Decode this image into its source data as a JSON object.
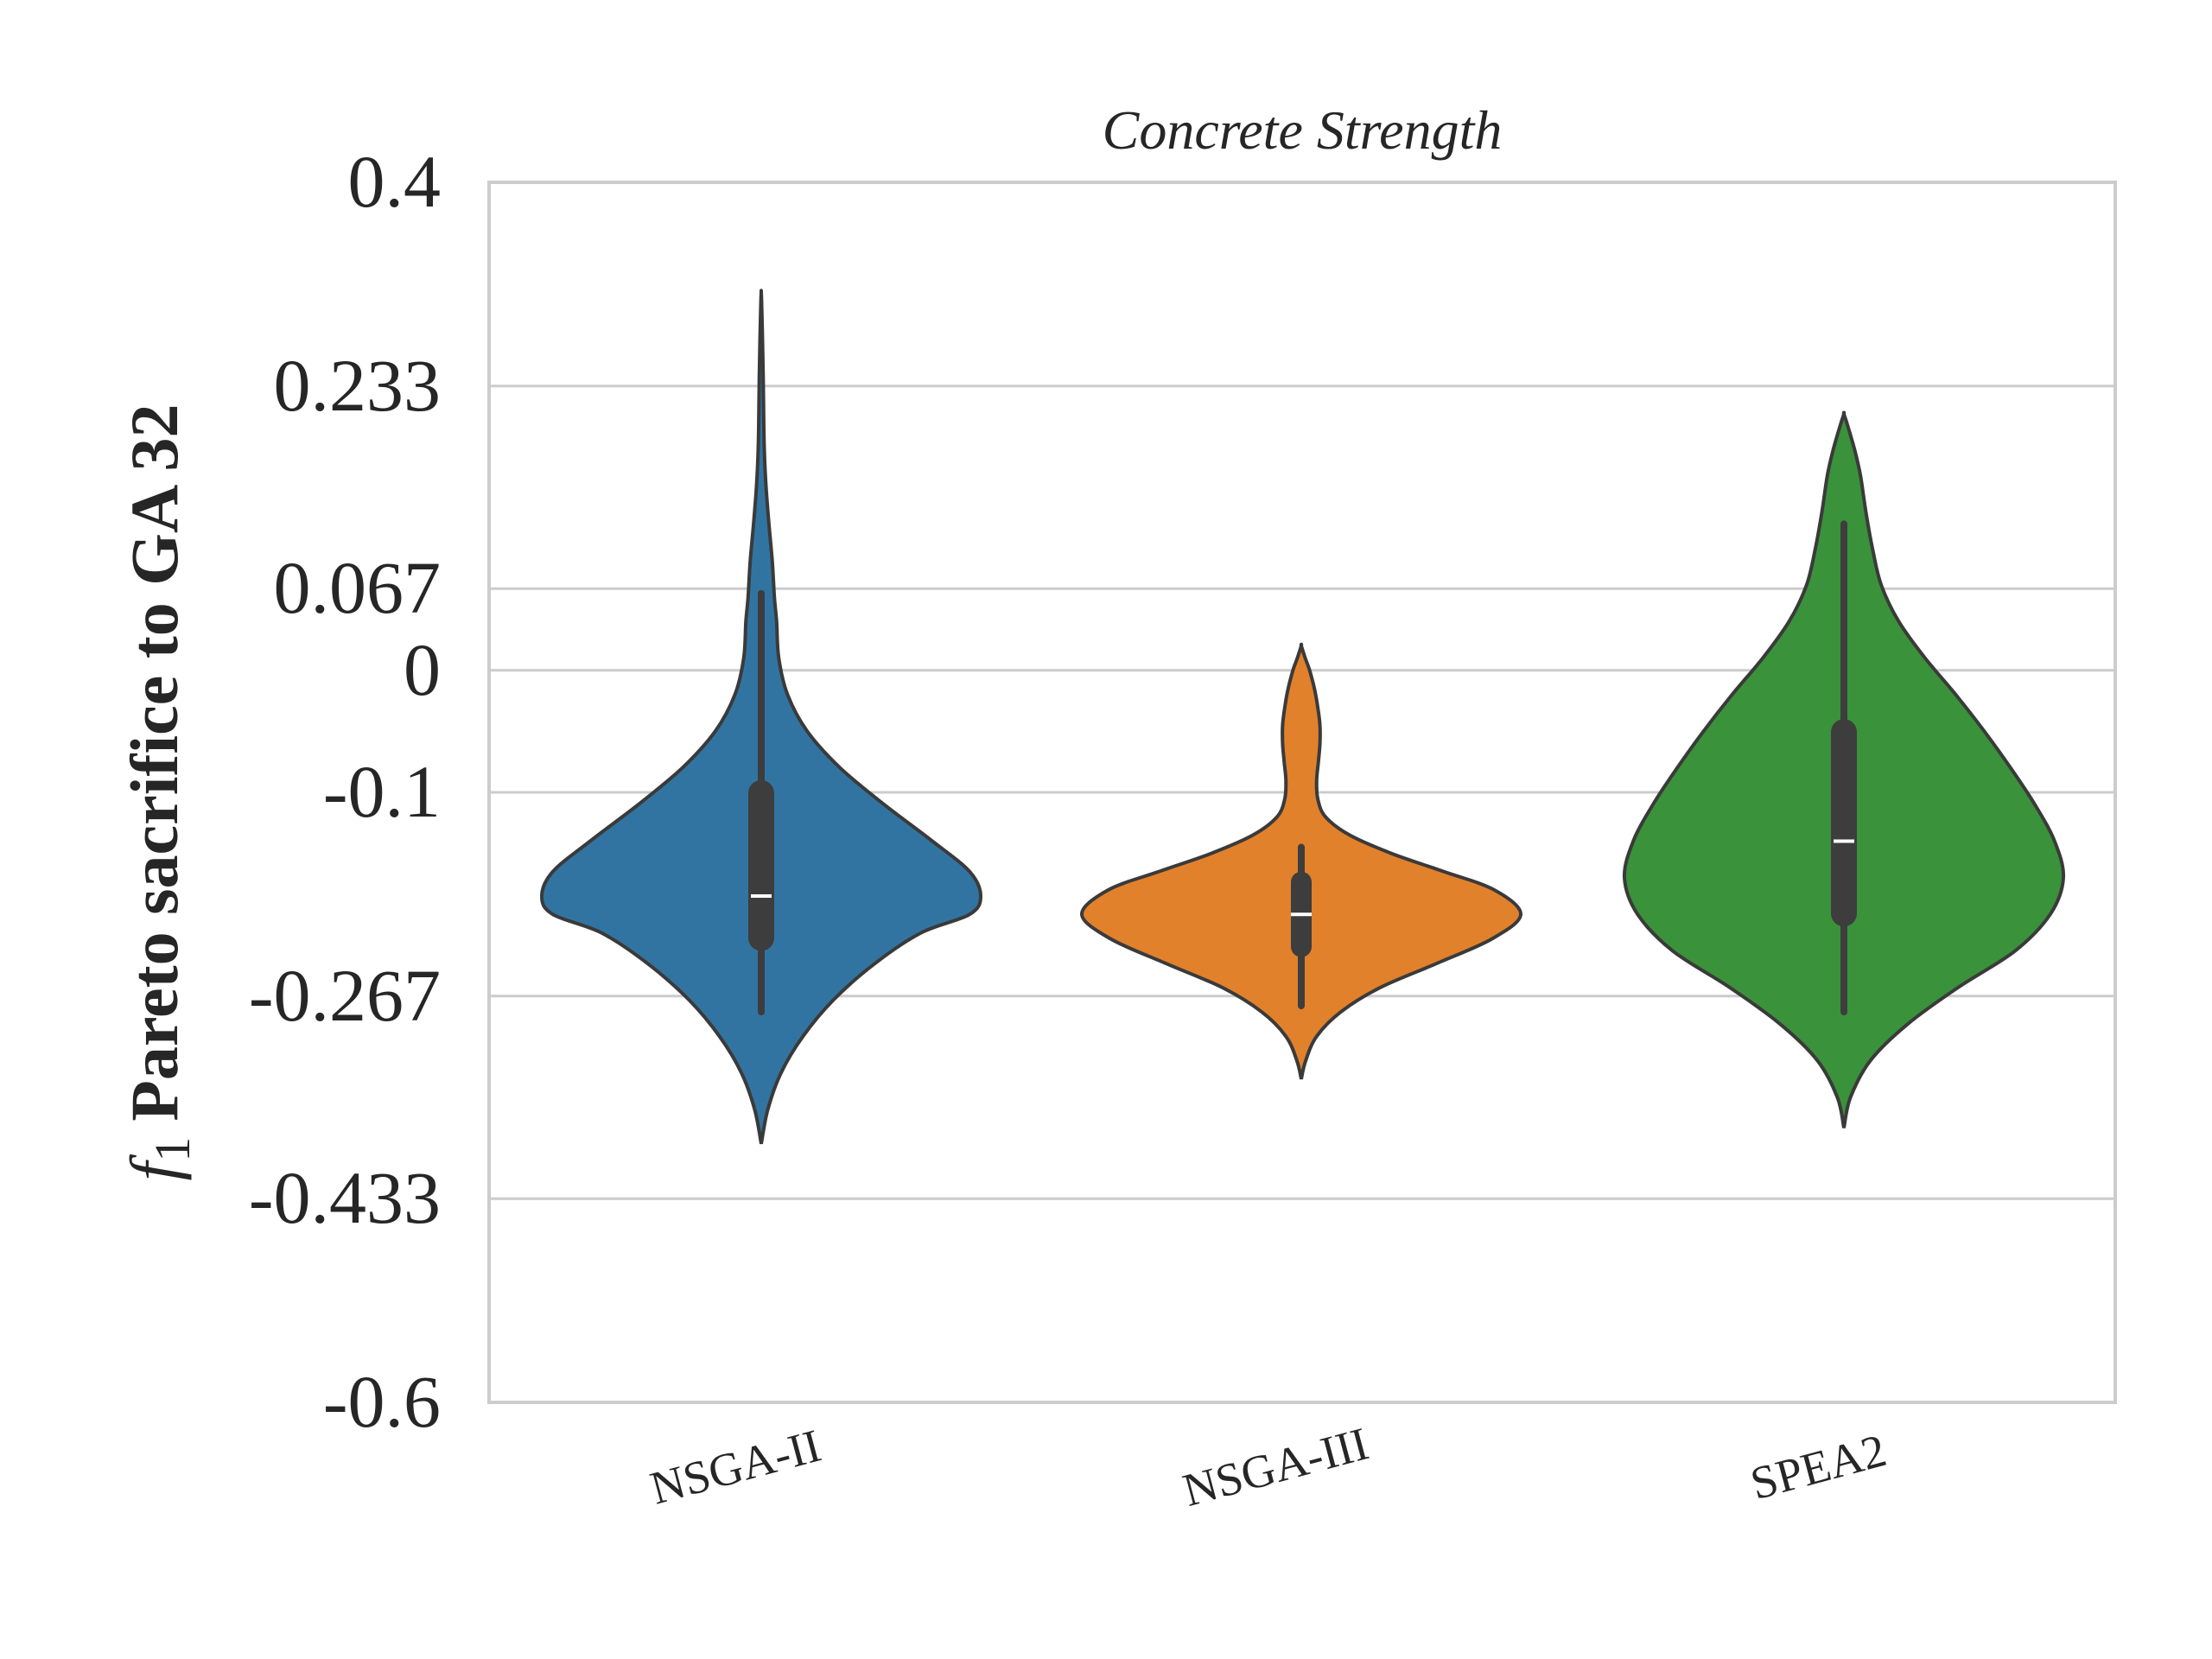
{
  "chart_data": {
    "type": "violin",
    "title": "Concrete Strength",
    "ylabel_symbol": "f",
    "ylabel_subscript": "1",
    "ylabel": "Pareto sacrifice to GA 32",
    "ylim": [
      -0.6,
      0.4
    ],
    "yticks": [
      0.4,
      0.233,
      0.067,
      0,
      -0.1,
      -0.267,
      -0.433,
      -0.6
    ],
    "ytick_labels": [
      "0.4",
      "0.233",
      "0.067",
      "0",
      "-0.1",
      "-0.267",
      "-0.433",
      "-0.6"
    ],
    "grid": "horizontal",
    "categories": [
      "NSGA-II",
      "NSGA-III",
      "SPEA2"
    ],
    "series": [
      {
        "category": "NSGA-II",
        "color": "#3274a1",
        "min": -0.28,
        "q1": -0.23,
        "median": -0.185,
        "q3": -0.09,
        "max": 0.063,
        "whisker_low": -0.28,
        "whisker_high": 0.063,
        "kde_extent": [
          -0.388,
          0.31
        ],
        "density": [
          [
            -0.388,
            0.0
          ],
          [
            -0.36,
            0.03
          ],
          [
            -0.33,
            0.09
          ],
          [
            -0.3,
            0.19
          ],
          [
            -0.27,
            0.33
          ],
          [
            -0.24,
            0.52
          ],
          [
            -0.215,
            0.73
          ],
          [
            -0.2,
            0.95
          ],
          [
            -0.185,
            1.0
          ],
          [
            -0.165,
            0.95
          ],
          [
            -0.14,
            0.78
          ],
          [
            -0.11,
            0.56
          ],
          [
            -0.08,
            0.36
          ],
          [
            -0.05,
            0.21
          ],
          [
            -0.02,
            0.12
          ],
          [
            0.01,
            0.08
          ],
          [
            0.04,
            0.07
          ],
          [
            0.06,
            0.06
          ],
          [
            0.09,
            0.05
          ],
          [
            0.12,
            0.035
          ],
          [
            0.15,
            0.022
          ],
          [
            0.18,
            0.014
          ],
          [
            0.21,
            0.011
          ],
          [
            0.24,
            0.009
          ],
          [
            0.27,
            0.006
          ],
          [
            0.3,
            0.002
          ],
          [
            0.31,
            0.0
          ]
        ]
      },
      {
        "category": "NSGA-III",
        "color": "#e1812c",
        "min": -0.275,
        "q1": -0.235,
        "median": -0.2,
        "q3": -0.165,
        "max": -0.145,
        "whisker_low": -0.275,
        "whisker_high": -0.145,
        "kde_extent": [
          -0.335,
          0.02
        ],
        "density": [
          [
            -0.335,
            0.0
          ],
          [
            -0.32,
            0.02
          ],
          [
            -0.3,
            0.07
          ],
          [
            -0.28,
            0.18
          ],
          [
            -0.26,
            0.36
          ],
          [
            -0.24,
            0.62
          ],
          [
            -0.22,
            0.87
          ],
          [
            -0.2,
            1.0
          ],
          [
            -0.18,
            0.88
          ],
          [
            -0.165,
            0.65
          ],
          [
            -0.15,
            0.41
          ],
          [
            -0.135,
            0.22
          ],
          [
            -0.12,
            0.11
          ],
          [
            -0.105,
            0.075
          ],
          [
            -0.09,
            0.07
          ],
          [
            -0.075,
            0.078
          ],
          [
            -0.06,
            0.085
          ],
          [
            -0.045,
            0.085
          ],
          [
            -0.03,
            0.075
          ],
          [
            -0.015,
            0.06
          ],
          [
            0.0,
            0.038
          ],
          [
            0.01,
            0.018
          ],
          [
            0.02,
            0.0
          ]
        ]
      },
      {
        "category": "SPEA2",
        "color": "#3a923a",
        "min": -0.28,
        "q1": -0.21,
        "median": -0.14,
        "q3": -0.04,
        "max": 0.12,
        "whisker_low": -0.28,
        "whisker_high": 0.12,
        "kde_extent": [
          -0.375,
          0.21
        ],
        "density": [
          [
            -0.375,
            0.0
          ],
          [
            -0.35,
            0.03
          ],
          [
            -0.32,
            0.12
          ],
          [
            -0.29,
            0.29
          ],
          [
            -0.26,
            0.52
          ],
          [
            -0.23,
            0.78
          ],
          [
            -0.2,
            0.94
          ],
          [
            -0.17,
            1.0
          ],
          [
            -0.14,
            0.96
          ],
          [
            -0.11,
            0.87
          ],
          [
            -0.08,
            0.76
          ],
          [
            -0.05,
            0.64
          ],
          [
            -0.02,
            0.51
          ],
          [
            0.01,
            0.37
          ],
          [
            0.04,
            0.25
          ],
          [
            0.07,
            0.17
          ],
          [
            0.1,
            0.13
          ],
          [
            0.13,
            0.1
          ],
          [
            0.16,
            0.075
          ],
          [
            0.18,
            0.05
          ],
          [
            0.2,
            0.018
          ],
          [
            0.21,
            0.0
          ]
        ]
      }
    ]
  }
}
